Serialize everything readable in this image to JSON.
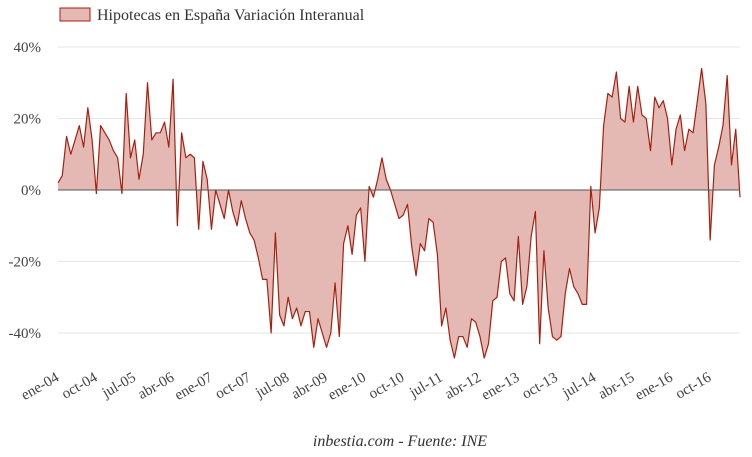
{
  "chart_data": {
    "type": "area",
    "title": "",
    "legend": {
      "label": "Hipotecas en España Variación Interanual",
      "position": "top-left"
    },
    "source": "inbestia.com - Fuente: INE",
    "series": [
      {
        "name": "Hipotecas en España Variación Interanual",
        "fill_color": "#e4b9b3",
        "line_color": "#a52010"
      }
    ],
    "ylim": [
      -50,
      40
    ],
    "y_ticks": [
      40,
      20,
      0,
      -20,
      -40
    ],
    "y_tick_labels": [
      "40%",
      "20%",
      "0%",
      "-20%",
      "-40%"
    ],
    "x_tick_labels": [
      "ene-04",
      "oct-04",
      "jul-05",
      "abr-06",
      "ene-07",
      "oct-07",
      "jul-08",
      "abr-09",
      "ene-10",
      "oct-10",
      "jul-11",
      "abr-12",
      "ene-13",
      "oct-13",
      "jul-14",
      "abr-15",
      "ene-16",
      "oct-16"
    ],
    "x_tick_index": [
      0,
      9,
      18,
      27,
      36,
      45,
      54,
      63,
      72,
      81,
      90,
      99,
      108,
      117,
      126,
      135,
      144,
      153
    ],
    "x_start": "2004-01",
    "values": [
      2,
      4,
      15,
      10,
      14,
      18,
      12,
      23,
      14,
      -1,
      18,
      16,
      14,
      11,
      9,
      -1,
      27,
      9,
      14,
      3,
      10,
      30,
      14,
      16,
      16,
      19,
      12,
      31,
      -10,
      16,
      9,
      10,
      9,
      -11,
      8,
      3,
      -11,
      0,
      -4,
      -8,
      0,
      -6,
      -10,
      -3,
      -8,
      -12,
      -14,
      -19,
      -25,
      -25,
      -40,
      -12,
      -35,
      -38,
      -30,
      -36,
      -33,
      -38,
      -34,
      -34,
      -44,
      -36,
      -40,
      -44,
      -40,
      -26,
      -41,
      -15,
      -10,
      -18,
      -7,
      -5,
      -20,
      1,
      -2,
      3,
      9,
      3,
      0,
      -4,
      -8,
      -7,
      -4,
      -16,
      -24,
      -15,
      -17,
      -8,
      -9,
      -18,
      -38,
      -33,
      -42,
      -47,
      -41,
      -41,
      -44,
      -36,
      -37,
      -41,
      -47,
      -43,
      -31,
      -30,
      -20,
      -19,
      -29,
      -31,
      -13,
      -32,
      -27,
      -13,
      -6,
      -43,
      -17,
      -33,
      -41,
      -42,
      -41,
      -29,
      -22,
      -27,
      -29,
      -32,
      -32,
      1,
      -12,
      -5,
      18,
      27,
      26,
      33,
      20,
      19,
      29,
      19,
      29,
      21,
      20,
      11,
      26,
      23,
      25,
      20,
      7,
      17,
      21,
      11,
      17,
      16,
      25,
      34,
      24,
      -14,
      7,
      12,
      18,
      32,
      7,
      17,
      -2
    ]
  }
}
